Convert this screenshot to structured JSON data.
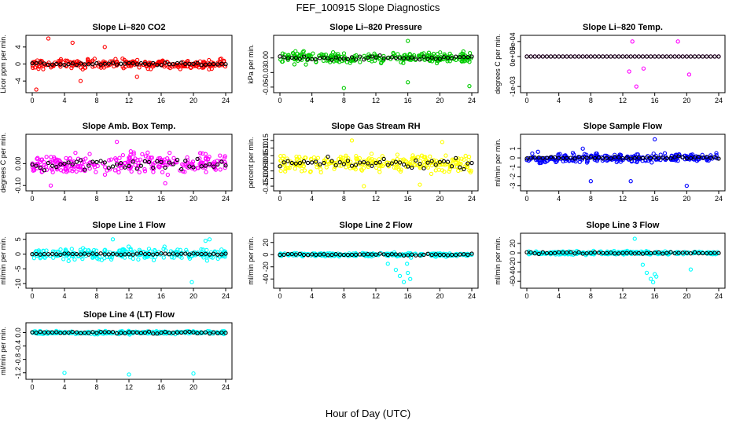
{
  "figure": {
    "title": "FEF_100915  Slope Diagnostics",
    "xlabel": "Hour of Day (UTC)"
  },
  "chart_data": [
    {
      "type": "scatter",
      "title": "Slope Li–820 CO2",
      "ylabel": "Licor ppm per min.",
      "xlim": [
        0,
        24
      ],
      "xticks": [
        "0",
        "4",
        "8",
        "12",
        "16",
        "20",
        "24"
      ],
      "ylim": [
        -6,
        6
      ],
      "yticks": [
        {
          "v": -4,
          "label": "-4"
        },
        {
          "v": 0,
          "label": "0"
        },
        {
          "v": 4,
          "label": "4"
        }
      ],
      "color": "#ff0000",
      "spread": 1.2,
      "mean_spread": 0.3,
      "outliers": [
        [
          2,
          6
        ],
        [
          5,
          5
        ],
        [
          9,
          4
        ],
        [
          0.5,
          -6
        ],
        [
          6,
          -4
        ],
        [
          13,
          -3
        ]
      ]
    },
    {
      "type": "scatter",
      "title": "Slope Li–820 Pressure",
      "ylabel": "kPa per min.",
      "xlim": [
        0,
        24
      ],
      "xticks": [
        "0",
        "4",
        "8",
        "12",
        "16",
        "20",
        "24"
      ],
      "ylim": [
        -0.065,
        0.04
      ],
      "yticks": [
        {
          "v": -0.06,
          "label": "-0.06"
        },
        {
          "v": -0.03,
          "label": "-0.03"
        },
        {
          "v": 0,
          "label": "0.00"
        }
      ],
      "color": "#00cc00",
      "spread": 0.012,
      "mean_spread": 0.004,
      "outliers": [
        [
          8,
          -0.062
        ],
        [
          16,
          -0.05
        ],
        [
          23.7,
          -0.058
        ],
        [
          16,
          0.035
        ]
      ]
    },
    {
      "type": "scatter",
      "title": "Slope Li–820 Temp.",
      "ylabel": "degrees C per min.",
      "xlim": [
        0,
        24
      ],
      "xticks": [
        "0",
        "4",
        "8",
        "12",
        "16",
        "20",
        "24"
      ],
      "ylim": [
        -0.0011,
        0.0006
      ],
      "yticks": [
        {
          "v": -0.001,
          "label": "-1e-03"
        },
        {
          "v": 0,
          "label": "0e+00"
        },
        {
          "v": 0.0005,
          "label": "5e-04"
        }
      ],
      "color": "#ff00ff",
      "spread": 0.0,
      "mean_spread": 0.0,
      "outliers": [
        [
          13.2,
          0.0005
        ],
        [
          18.9,
          0.0005
        ],
        [
          12.8,
          -0.0005
        ],
        [
          14.6,
          -0.0004
        ],
        [
          20.3,
          -0.0006
        ],
        [
          13.7,
          -0.001
        ]
      ]
    },
    {
      "type": "scatter",
      "title": "Slope Amb. Box Temp.",
      "ylabel": "degrees C per min.",
      "xlim": [
        0,
        24
      ],
      "xticks": [
        "0",
        "4",
        "8",
        "12",
        "16",
        "20",
        "24"
      ],
      "ylim": [
        -0.11,
        0.12
      ],
      "yticks": [
        {
          "v": -0.1,
          "label": "-0.10"
        },
        {
          "v": 0,
          "label": "0.00"
        }
      ],
      "color": "#ff00ff",
      "spread": 0.05,
      "mean_spread": 0.03,
      "outliers": [
        [
          2.3,
          -0.1
        ],
        [
          10.5,
          0.1
        ],
        [
          16.5,
          -0.09
        ]
      ]
    },
    {
      "type": "scatter",
      "title": "Slope Gas Stream RH",
      "ylabel": "percent per min.",
      "xlim": [
        0,
        24
      ],
      "xticks": [
        "0",
        "4",
        "8",
        "12",
        "16",
        "20",
        "24"
      ],
      "ylim": [
        -0.16,
        0.17
      ],
      "yticks": [
        {
          "v": -0.15,
          "label": "-0.15"
        },
        {
          "v": -0.1,
          "label": "-0.10"
        },
        {
          "v": -0.05,
          "label": "-0.05"
        },
        {
          "v": 0,
          "label": "0.00"
        },
        {
          "v": 0.05,
          "label": "0.05"
        },
        {
          "v": 0.1,
          "label": "0.10"
        },
        {
          "v": 0.15,
          "label": "0.15"
        }
      ],
      "color": "#ffff00",
      "spread": 0.06,
      "mean_spread": 0.03,
      "outliers": [
        [
          9,
          0.15
        ],
        [
          20.3,
          0.14
        ],
        [
          10.5,
          -0.15
        ],
        [
          17.5,
          -0.14
        ]
      ]
    },
    {
      "type": "scatter",
      "title": "Slope Sample Flow",
      "ylabel": "ml/min per min.",
      "xlim": [
        0,
        24
      ],
      "xticks": [
        "0",
        "4",
        "8",
        "12",
        "16",
        "20",
        "24"
      ],
      "ylim": [
        -3.2,
        2.2
      ],
      "yticks": [
        {
          "v": -3,
          "label": "-3"
        },
        {
          "v": -2,
          "label": "-2"
        },
        {
          "v": -1,
          "label": "-1"
        },
        {
          "v": 0,
          "label": "0"
        },
        {
          "v": 1,
          "label": "1"
        }
      ],
      "color": "#0000ff",
      "spread": 0.5,
      "mean_spread": 0.15,
      "outliers": [
        [
          16,
          2
        ],
        [
          20,
          -3
        ],
        [
          8,
          -2.5
        ],
        [
          13,
          -2.5
        ],
        [
          7,
          1
        ]
      ]
    },
    {
      "type": "scatter",
      "title": "Slope Line 1 Flow",
      "ylabel": "ml/min per min.",
      "xlim": [
        0,
        24
      ],
      "xticks": [
        "0",
        "4",
        "8",
        "12",
        "16",
        "20",
        "24"
      ],
      "ylim": [
        -10.5,
        6
      ],
      "yticks": [
        {
          "v": -10,
          "label": "-10"
        },
        {
          "v": -5,
          "label": "-5"
        },
        {
          "v": 0,
          "label": "0"
        },
        {
          "v": 5,
          "label": "5"
        }
      ],
      "color": "#00ffff",
      "spread": 2,
      "mean_spread": 0.3,
      "outliers": [
        [
          19.8,
          -9.5
        ],
        [
          22,
          5
        ],
        [
          10,
          5
        ],
        [
          21.5,
          4.5
        ]
      ]
    },
    {
      "type": "scatter",
      "title": "Slope Line 2 Flow",
      "ylabel": "ml/min per min.",
      "xlim": [
        0,
        24
      ],
      "xticks": [
        "0",
        "4",
        "8",
        "12",
        "16",
        "20",
        "24"
      ],
      "ylim": [
        -50,
        30
      ],
      "yticks": [
        {
          "v": -40,
          "label": "-40"
        },
        {
          "v": -20,
          "label": "-20"
        },
        {
          "v": 0,
          "label": "0"
        },
        {
          "v": 20,
          "label": "20"
        }
      ],
      "color": "#00ffff",
      "spread": 3,
      "mean_spread": 1.5,
      "outliers": [
        [
          15.5,
          -45
        ],
        [
          15,
          -35
        ],
        [
          14.5,
          -25
        ],
        [
          16.3,
          -40
        ],
        [
          13.5,
          -15
        ],
        [
          16,
          -30
        ],
        [
          15.9,
          -15
        ],
        [
          16.4,
          -5
        ]
      ]
    },
    {
      "type": "scatter",
      "title": "Slope Line 3 Flow",
      "ylabel": "ml/min per min.",
      "xlim": [
        0,
        24
      ],
      "xticks": [
        "0",
        "4",
        "8",
        "12",
        "16",
        "20",
        "24"
      ],
      "ylim": [
        -68,
        35
      ],
      "yticks": [
        {
          "v": -60,
          "label": "-60"
        },
        {
          "v": -40,
          "label": "-40"
        },
        {
          "v": -20,
          "label": "-20"
        },
        {
          "v": 0,
          "label": "0"
        },
        {
          "v": 20,
          "label": "20"
        }
      ],
      "color": "#00ffff",
      "spread": 4,
      "mean_spread": 2,
      "outliers": [
        [
          15.5,
          -55
        ],
        [
          15,
          -42
        ],
        [
          16,
          -45
        ],
        [
          16.2,
          -50
        ],
        [
          14.5,
          -25
        ],
        [
          20.5,
          -35
        ],
        [
          13.5,
          30
        ],
        [
          15.8,
          -62
        ]
      ]
    },
    {
      "type": "scatter",
      "title": "Slope Line 4 (LT) Flow",
      "ylabel": "ml/min per min.",
      "xlim": [
        0,
        24
      ],
      "xticks": [
        "0",
        "4",
        "8",
        "12",
        "16",
        "20",
        "24"
      ],
      "ylim": [
        -1.3,
        0.2
      ],
      "yticks": [
        {
          "v": -1.2,
          "label": "-1.2"
        },
        {
          "v": -0.8,
          "label": "-0.8"
        },
        {
          "v": -0.4,
          "label": "-0.4"
        },
        {
          "v": 0,
          "label": "0.0"
        }
      ],
      "color": "#00ffff",
      "spread": 0.05,
      "mean_spread": 0.03,
      "outliers": [
        [
          4,
          -1.2
        ],
        [
          12,
          -1.25
        ],
        [
          20,
          -1.22
        ]
      ]
    }
  ]
}
